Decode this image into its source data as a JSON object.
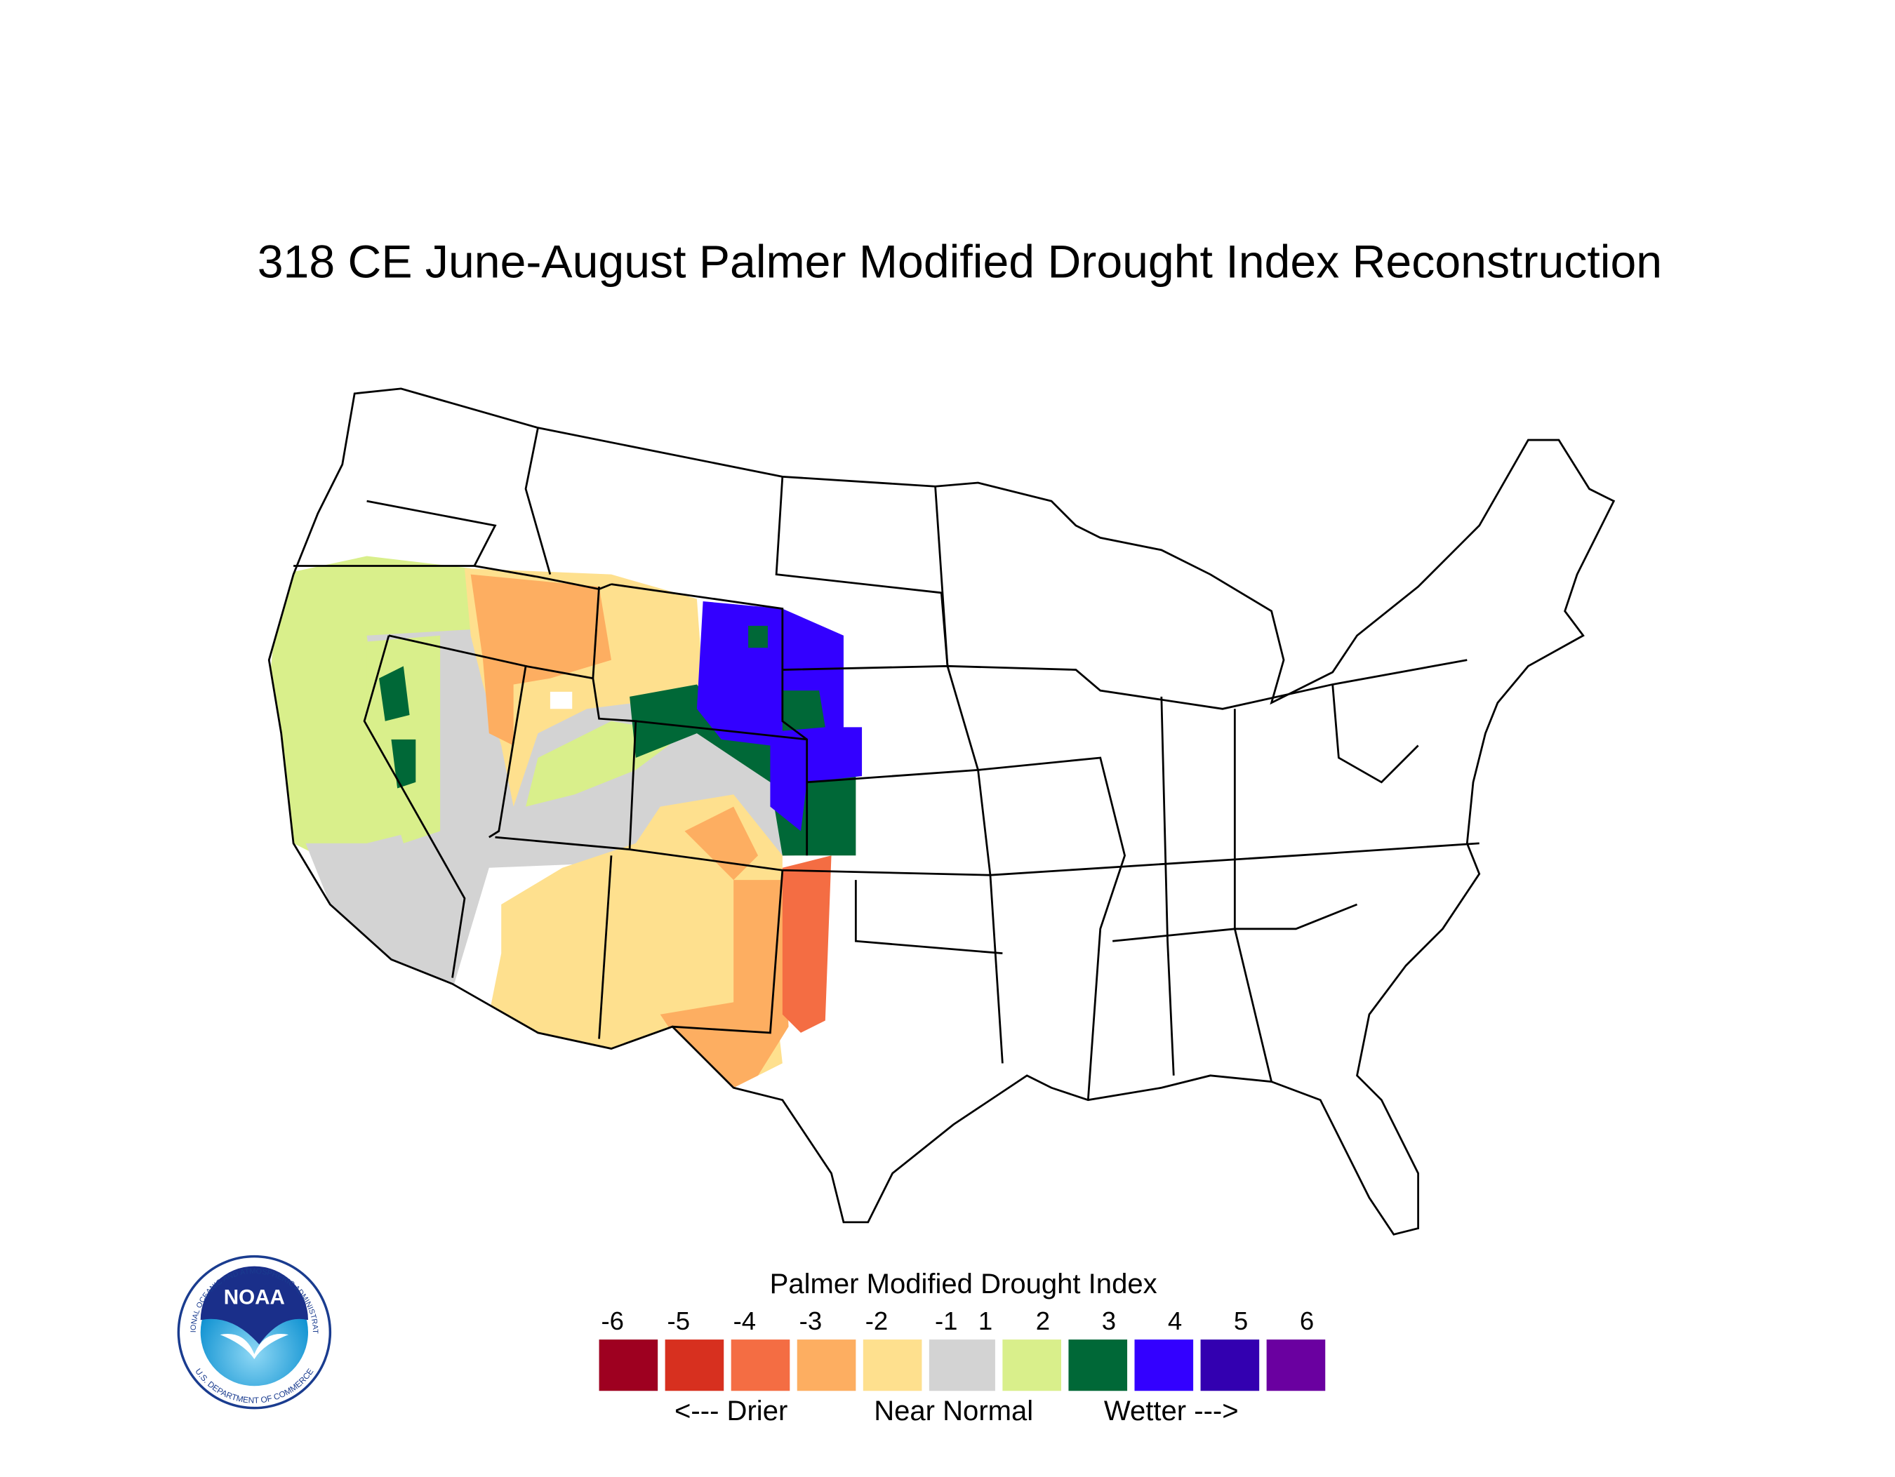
{
  "title": "318 CE  June-August  Palmer Modified Drought Index Reconstruction",
  "legend": {
    "title": "Palmer Modified Drought Index",
    "ticks": [
      -6,
      -5,
      -4,
      -3,
      -2,
      -1,
      1,
      2,
      3,
      4,
      5,
      6
    ],
    "colors": [
      "#9e0020",
      "#d7301f",
      "#f46d43",
      "#fdae61",
      "#fee08e",
      "#d3d3d3",
      "#d9ef8b",
      "#006837",
      "#3300ff",
      "#3300b0",
      "#6a00a0"
    ],
    "labels": [
      "<--- Drier",
      "Near Normal",
      "Wetter --->"
    ]
  },
  "logo": {
    "name": "NOAA",
    "ring_top": "NATIONAL OCEANIC AND ATMOSPHERIC ADMINISTRATION",
    "ring_bottom": "U.S. DEPARTMENT OF COMMERCE"
  }
}
